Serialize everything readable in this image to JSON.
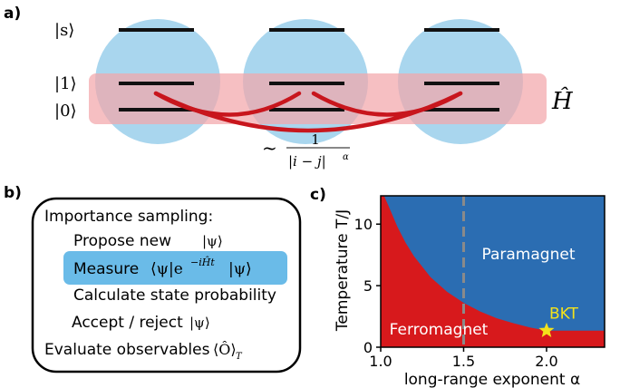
{
  "panel_a": {
    "label": "a)",
    "state_s": "|s⟩",
    "state_1": "|1⟩",
    "state_0": "|0⟩",
    "hamiltonian": "Ĥ",
    "coupling_tilde": "~",
    "coupling_num": "1",
    "coupling_den": "|i − j|",
    "coupling_exp": "α",
    "colors": {
      "atom": "#a9d6ee",
      "band": "#f2a6aa",
      "level": "#111111",
      "coupling": "#c8161d"
    }
  },
  "panel_b": {
    "label": "b)",
    "title": "Importance sampling:",
    "step1": "Propose new",
    "step1_math": "|ψ⟩",
    "step2": "Measure",
    "step2_math": "⟨ψ|e",
    "step2_exp": "−iĤt",
    "step2_math_end": "|ψ⟩",
    "step3": "Calculate state probability",
    "step4": "Accept / reject",
    "step4_math": "|ψ⟩",
    "step5": "Evaluate observables",
    "step5_math": "⟨Ô⟩",
    "step5_sub": "T",
    "colors": {
      "highlight": "#5ab4e5"
    }
  },
  "panel_c": {
    "label": "c)"
  },
  "chart_data": {
    "type": "area",
    "xlabel": "long-range exponent α",
    "ylabel": "Temperature T/J",
    "xlim": [
      1.0,
      2.35
    ],
    "ylim": [
      0,
      12.3
    ],
    "xticks": [
      "1.0",
      "1.5",
      "2.0"
    ],
    "yticks": [
      "0",
      "5",
      "10"
    ],
    "boundary": {
      "x": [
        1.02,
        1.05,
        1.1,
        1.15,
        1.2,
        1.3,
        1.4,
        1.5,
        1.6,
        1.7,
        1.8,
        1.9,
        2.0
      ],
      "y": [
        12.3,
        11.4,
        9.8,
        8.5,
        7.4,
        5.7,
        4.5,
        3.6,
        2.9,
        2.35,
        1.95,
        1.6,
        1.35
      ]
    },
    "regions": [
      {
        "name": "Paramagnet",
        "color": "#2b6db2"
      },
      {
        "name": "Ferromagnet",
        "color": "#d7191c"
      }
    ],
    "vline_x": 1.5,
    "bkt_point": {
      "x": 2.0,
      "y": 1.35,
      "label": "BKT"
    },
    "colors": {
      "vline": "#8a8a8a",
      "star": "#f4e21b"
    }
  }
}
